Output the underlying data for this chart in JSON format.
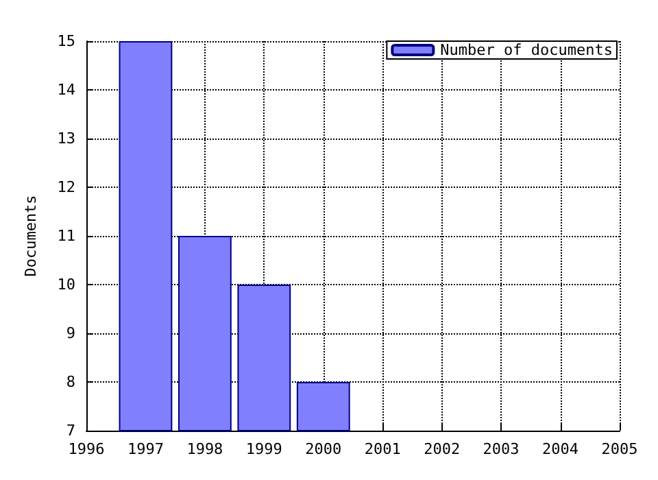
{
  "chart_data": {
    "type": "bar",
    "ylabel": "Documents",
    "x": [
      1997,
      1998,
      1999,
      2000
    ],
    "series": [
      {
        "name": "Number of documents",
        "color": "#8080ff",
        "values": [
          15,
          11,
          10,
          8
        ]
      }
    ],
    "xlim": [
      1996,
      2005
    ],
    "xticks": [
      1996,
      1997,
      1998,
      1999,
      2000,
      2001,
      2002,
      2003,
      2004,
      2005
    ],
    "ylim": [
      7,
      15
    ],
    "yticks": [
      7,
      8,
      9,
      10,
      11,
      12,
      13,
      14,
      15
    ],
    "grid": true,
    "legend": "top right"
  }
}
